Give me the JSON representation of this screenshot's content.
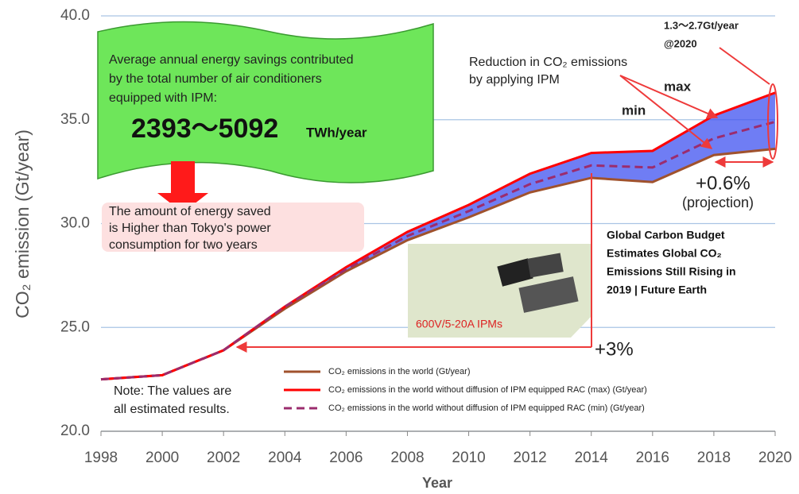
{
  "chart_data": {
    "type": "line",
    "x": [
      1998,
      2000,
      2002,
      2004,
      2006,
      2008,
      2010,
      2012,
      2014,
      2016,
      2018,
      2020
    ],
    "xlim": [
      1998,
      2020
    ],
    "xticks": [
      1998,
      2000,
      2002,
      2004,
      2006,
      2008,
      2010,
      2012,
      2014,
      2016,
      2018,
      2020
    ],
    "ylim": [
      20,
      40
    ],
    "yticks": [
      {
        "value": 20,
        "label": "20.0"
      },
      {
        "value": 25,
        "label": "25.0"
      },
      {
        "value": 30,
        "label": "30.0"
      },
      {
        "value": 35,
        "label": "35.0"
      },
      {
        "value": 40,
        "label": "40.0"
      }
    ],
    "xlabel": "Year",
    "ylabel": "CO₂ emission (Gt/year)",
    "grid": true,
    "area_color": "#3f52f0",
    "series": [
      {
        "name": "CO₂ emissions in the world (Gt/year)",
        "color": "#a0522d",
        "style": "solid",
        "values": [
          22.5,
          22.7,
          23.9,
          25.9,
          27.7,
          29.2,
          30.3,
          31.5,
          32.2,
          32.0,
          33.3,
          33.6
        ]
      },
      {
        "name": "CO₂ emissions in the world without diffusion of IPM equipped RAC (max) (Gt/year)",
        "color": "#ff0000",
        "style": "solid",
        "values": [
          22.5,
          22.7,
          23.9,
          26.0,
          27.9,
          29.6,
          30.9,
          32.4,
          33.4,
          33.5,
          35.2,
          36.3
        ]
      },
      {
        "name": "CO₂ emissions in the world without diffusion of IPM equipped RAC (min) (Gt/year)",
        "color": "#9b2c6e",
        "style": "dashed",
        "values": [
          22.5,
          22.7,
          23.9,
          26.0,
          27.8,
          29.4,
          30.6,
          31.9,
          32.8,
          32.7,
          34.1,
          34.9
        ]
      }
    ],
    "annotations": {
      "savings_text": [
        "Average annual energy savings contributed",
        "by the total number of air conditioners",
        "equipped with IPM:"
      ],
      "savings_value": "2393～5092",
      "savings_unit": "TWh/year",
      "tokyo_text": [
        "The amount of energy saved",
        "is Higher than Tokyo's power",
        "consumption for two years"
      ],
      "reduction_text": [
        "Reduction in CO₂ emissions",
        "by applying IPM"
      ],
      "max": "max",
      "min": "min",
      "range_text": [
        "1.3～2.7Gt/year",
        "@2020"
      ],
      "growth_recent": "+0.6%",
      "projection": "(projection)",
      "source": [
        "Global Carbon Budget",
        "Estimates Global CO₂",
        "Emissions Still Rising in",
        "2019 |  Future Earth"
      ],
      "ipm_label": "600V/5-20A IPMs",
      "growth_past": "+3%",
      "note": [
        "Note: The values are",
        "all estimated results."
      ]
    }
  }
}
